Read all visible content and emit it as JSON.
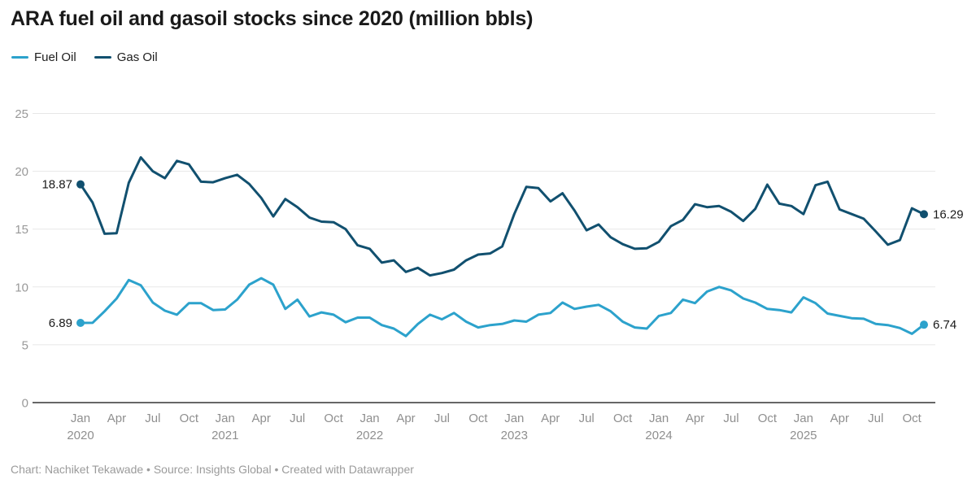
{
  "title": "ARA fuel oil and gasoil stocks since 2020 (million bbls)",
  "footer": "Chart: Nachiket Tekawade • Source: Insights Global • Created with Datawrapper",
  "legend": {
    "items": [
      {
        "label": "Fuel Oil",
        "color": "#2CA2CC"
      },
      {
        "label": "Gas Oil",
        "color": "#11506F"
      }
    ]
  },
  "chart_data": {
    "type": "line",
    "title": "ARA fuel oil and gasoil stocks since 2020 (million bbls)",
    "xlabel": "",
    "ylabel": "",
    "x_start": "2020-01",
    "x_end": "2025-11",
    "x_interval": "month",
    "n_points": 71,
    "ylim": [
      0,
      25
    ],
    "yticks": [
      0,
      5,
      10,
      15,
      20,
      25
    ],
    "grid": "horizontal",
    "legend_position": "top-left",
    "xticks": [
      {
        "month": "Jan",
        "year": "2020"
      },
      {
        "month": "Apr"
      },
      {
        "month": "Jul"
      },
      {
        "month": "Oct"
      },
      {
        "month": "Jan",
        "year": "2021"
      },
      {
        "month": "Apr"
      },
      {
        "month": "Jul"
      },
      {
        "month": "Oct"
      },
      {
        "month": "Jan",
        "year": "2022"
      },
      {
        "month": "Apr"
      },
      {
        "month": "Jul"
      },
      {
        "month": "Oct"
      },
      {
        "month": "Jan",
        "year": "2023"
      },
      {
        "month": "Apr"
      },
      {
        "month": "Jul"
      },
      {
        "month": "Oct"
      },
      {
        "month": "Jan",
        "year": "2024"
      },
      {
        "month": "Apr"
      },
      {
        "month": "Jul"
      },
      {
        "month": "Oct"
      },
      {
        "month": "Jan",
        "year": "2025"
      },
      {
        "month": "Apr"
      },
      {
        "month": "Jul"
      },
      {
        "month": "Oct"
      }
    ],
    "series": [
      {
        "name": "Fuel Oil",
        "color": "#2CA2CC",
        "start_label": "6.89",
        "end_label": "6.74",
        "values": [
          6.89,
          6.9,
          7.9,
          9.0,
          10.6,
          10.15,
          8.65,
          7.95,
          7.6,
          8.6,
          8.6,
          8.0,
          8.05,
          8.9,
          10.2,
          10.75,
          10.2,
          8.1,
          8.9,
          7.45,
          7.8,
          7.6,
          6.95,
          7.35,
          7.35,
          6.7,
          6.4,
          5.75,
          6.8,
          7.6,
          7.2,
          7.75,
          7.0,
          6.5,
          6.7,
          6.8,
          7.1,
          7.0,
          7.6,
          7.75,
          8.65,
          8.1,
          8.3,
          8.45,
          7.9,
          7.0,
          6.5,
          6.4,
          7.5,
          7.75,
          8.9,
          8.6,
          9.6,
          10.0,
          9.7,
          9.0,
          8.65,
          8.1,
          8.0,
          7.8,
          9.1,
          8.6,
          7.7,
          7.5,
          7.3,
          7.25,
          6.8,
          6.7,
          6.45,
          5.95,
          6.74
        ]
      },
      {
        "name": "Gas Oil",
        "color": "#11506F",
        "start_label": "18.87",
        "end_label": "16.29",
        "values": [
          18.87,
          17.3,
          14.6,
          14.65,
          19.0,
          21.2,
          20.0,
          19.4,
          20.9,
          20.6,
          19.1,
          19.05,
          19.4,
          19.7,
          18.9,
          17.7,
          16.1,
          17.6,
          16.9,
          16.0,
          15.65,
          15.6,
          15.0,
          13.6,
          13.3,
          12.1,
          12.3,
          11.3,
          11.65,
          11.0,
          11.2,
          11.5,
          12.3,
          12.8,
          12.9,
          13.5,
          16.3,
          18.65,
          18.55,
          17.4,
          18.1,
          16.6,
          14.9,
          15.4,
          14.3,
          13.7,
          13.3,
          13.35,
          13.9,
          15.25,
          15.8,
          17.15,
          16.9,
          17.0,
          16.5,
          15.7,
          16.75,
          18.85,
          17.2,
          17.0,
          16.3,
          18.8,
          19.1,
          16.7,
          16.3,
          15.9,
          14.8,
          13.65,
          14.05,
          16.8,
          16.29
        ]
      }
    ]
  }
}
